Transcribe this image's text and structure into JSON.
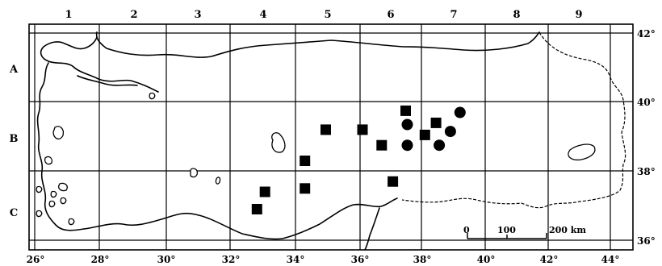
{
  "grid": {
    "columns": [
      "1",
      "2",
      "3",
      "4",
      "5",
      "6",
      "7",
      "8",
      "9"
    ],
    "rows": [
      "A",
      "B",
      "C"
    ],
    "longitudes": [
      "26°",
      "28°",
      "30°",
      "32°",
      "34°",
      "36°",
      "38°",
      "40°",
      "42°",
      "44°"
    ],
    "latitudes": [
      "42°",
      "40°",
      "38°",
      "36°"
    ]
  },
  "scale_bar": {
    "labels": [
      "0",
      "100",
      "200 km"
    ]
  },
  "markers": {
    "squares": [
      {
        "lon": 32.95,
        "lat": 36.9
      },
      {
        "lon": 33.2,
        "lat": 37.4
      },
      {
        "lon": 34.45,
        "lat": 37.5
      },
      {
        "lon": 34.45,
        "lat": 38.3
      },
      {
        "lon": 35.1,
        "lat": 39.2
      },
      {
        "lon": 36.25,
        "lat": 39.2
      },
      {
        "lon": 36.85,
        "lat": 38.75
      },
      {
        "lon": 37.2,
        "lat": 37.7
      },
      {
        "lon": 37.6,
        "lat": 39.75
      },
      {
        "lon": 38.2,
        "lat": 39.05
      },
      {
        "lon": 38.55,
        "lat": 39.4
      }
    ],
    "circles": [
      {
        "lon": 37.65,
        "lat": 39.35
      },
      {
        "lon": 37.65,
        "lat": 38.75
      },
      {
        "lon": 38.65,
        "lat": 38.75
      },
      {
        "lon": 39.0,
        "lat": 39.15
      },
      {
        "lon": 39.3,
        "lat": 39.7
      }
    ]
  }
}
